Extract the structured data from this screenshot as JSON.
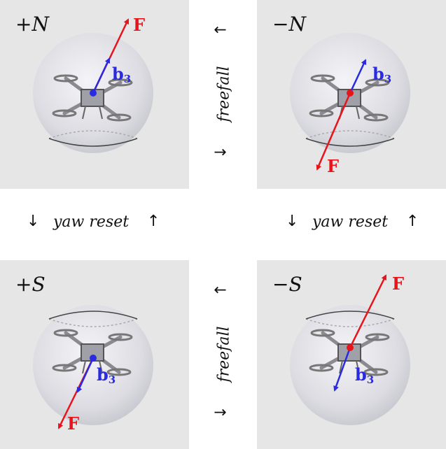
{
  "panels": {
    "pn": {
      "mode_label": "+N",
      "force_label": "F",
      "body_axis_label": "b",
      "body_axis_sub": "3"
    },
    "mn": {
      "mode_label": "−N",
      "force_label": "F",
      "body_axis_label": "b",
      "body_axis_sub": "3"
    },
    "ps": {
      "mode_label": "+S",
      "force_label": "F",
      "body_axis_label": "b",
      "body_axis_sub": "3"
    },
    "ms": {
      "mode_label": "−S",
      "force_label": "F",
      "body_axis_label": "b",
      "body_axis_sub": "3"
    }
  },
  "transitions": {
    "top": "freefall",
    "bottom": "freefall",
    "left": "yaw reset",
    "right": "yaw reset"
  },
  "arrow_glyphs": {
    "up": "↑",
    "down": "↓"
  },
  "colors": {
    "force": "#e8141c",
    "body_axis": "#2a2ae0",
    "panel_bg": "#e6e6e6",
    "sphere": "#d6d6de"
  }
}
